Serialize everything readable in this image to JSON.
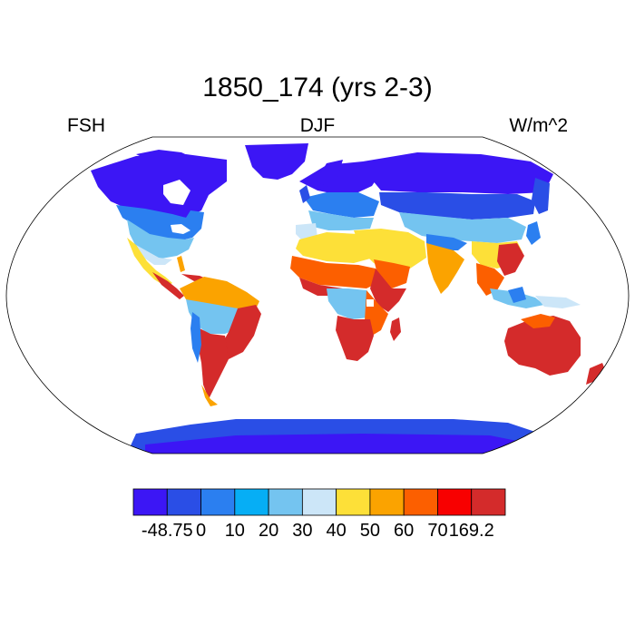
{
  "title": "1850_174 (yrs 2-3)",
  "variable": "FSH",
  "season": "DJF",
  "units": "W/m^2",
  "colorbar": {
    "colors": [
      "#3c16f5",
      "#2a4ee6",
      "#2b7ff0",
      "#06aef5",
      "#74c4f0",
      "#cce6f8",
      "#fde038",
      "#fba300",
      "#fc5f00",
      "#f80000",
      "#d42b2b"
    ],
    "labels": [
      "-48.75",
      "0",
      "10",
      "20",
      "30",
      "40",
      "50",
      "60",
      "70",
      "169.2"
    ]
  },
  "map": {
    "projection": "robinson",
    "ocean_color": "#ffffff",
    "land_note": "sensible heat flux field colored by colorbar classes"
  }
}
